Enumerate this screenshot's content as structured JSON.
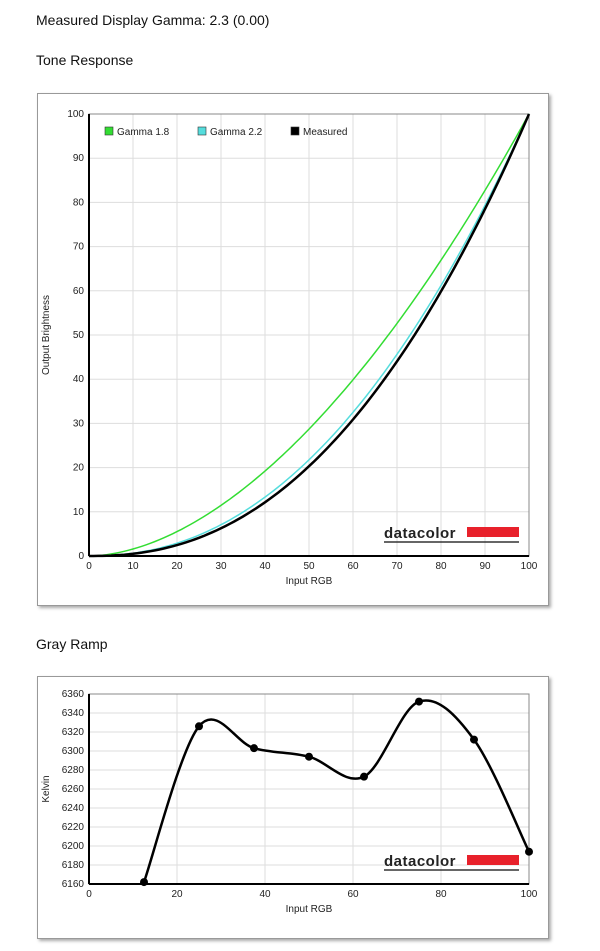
{
  "header": {
    "title": "Measured Display Gamma: 2.3 (0.00)"
  },
  "sections": {
    "tone": "Tone Response",
    "gray": "Gray Ramp"
  },
  "brand": "datacolor",
  "colors": {
    "gamma18": "#33dd33",
    "gamma22": "#55dddd",
    "measured": "#000000",
    "brand_red": "#e8212b"
  },
  "chart_data": [
    {
      "type": "line",
      "title": "Tone Response",
      "xlabel": "Input RGB",
      "ylabel": "Output Brightness",
      "xlim": [
        0,
        100
      ],
      "ylim": [
        0,
        100
      ],
      "xticks": [
        0,
        10,
        20,
        30,
        40,
        50,
        60,
        70,
        80,
        90,
        100
      ],
      "yticks": [
        0,
        10,
        20,
        30,
        40,
        50,
        60,
        70,
        80,
        90,
        100
      ],
      "grid": true,
      "legend": "top-left",
      "series": [
        {
          "name": "Gamma 1.8",
          "gamma": 1.8,
          "color": "#33dd33"
        },
        {
          "name": "Gamma 2.2",
          "gamma": 2.2,
          "color": "#55dddd"
        },
        {
          "name": "Measured",
          "gamma": 2.3,
          "color": "#000000"
        }
      ]
    },
    {
      "type": "line",
      "title": "Gray Ramp",
      "xlabel": "Input RGB",
      "ylabel": "Kelvin",
      "xlim": [
        0,
        100
      ],
      "ylim": [
        6160,
        6360
      ],
      "xticks": [
        0,
        20,
        40,
        60,
        80,
        100
      ],
      "yticks": [
        6160,
        6180,
        6200,
        6220,
        6240,
        6260,
        6280,
        6300,
        6320,
        6340,
        6360
      ],
      "grid": true,
      "x": [
        12.5,
        25,
        37.5,
        50,
        62.5,
        75,
        87.5,
        100
      ],
      "y": [
        6162,
        6326,
        6303,
        6294,
        6273,
        6352,
        6312,
        6194
      ]
    }
  ]
}
